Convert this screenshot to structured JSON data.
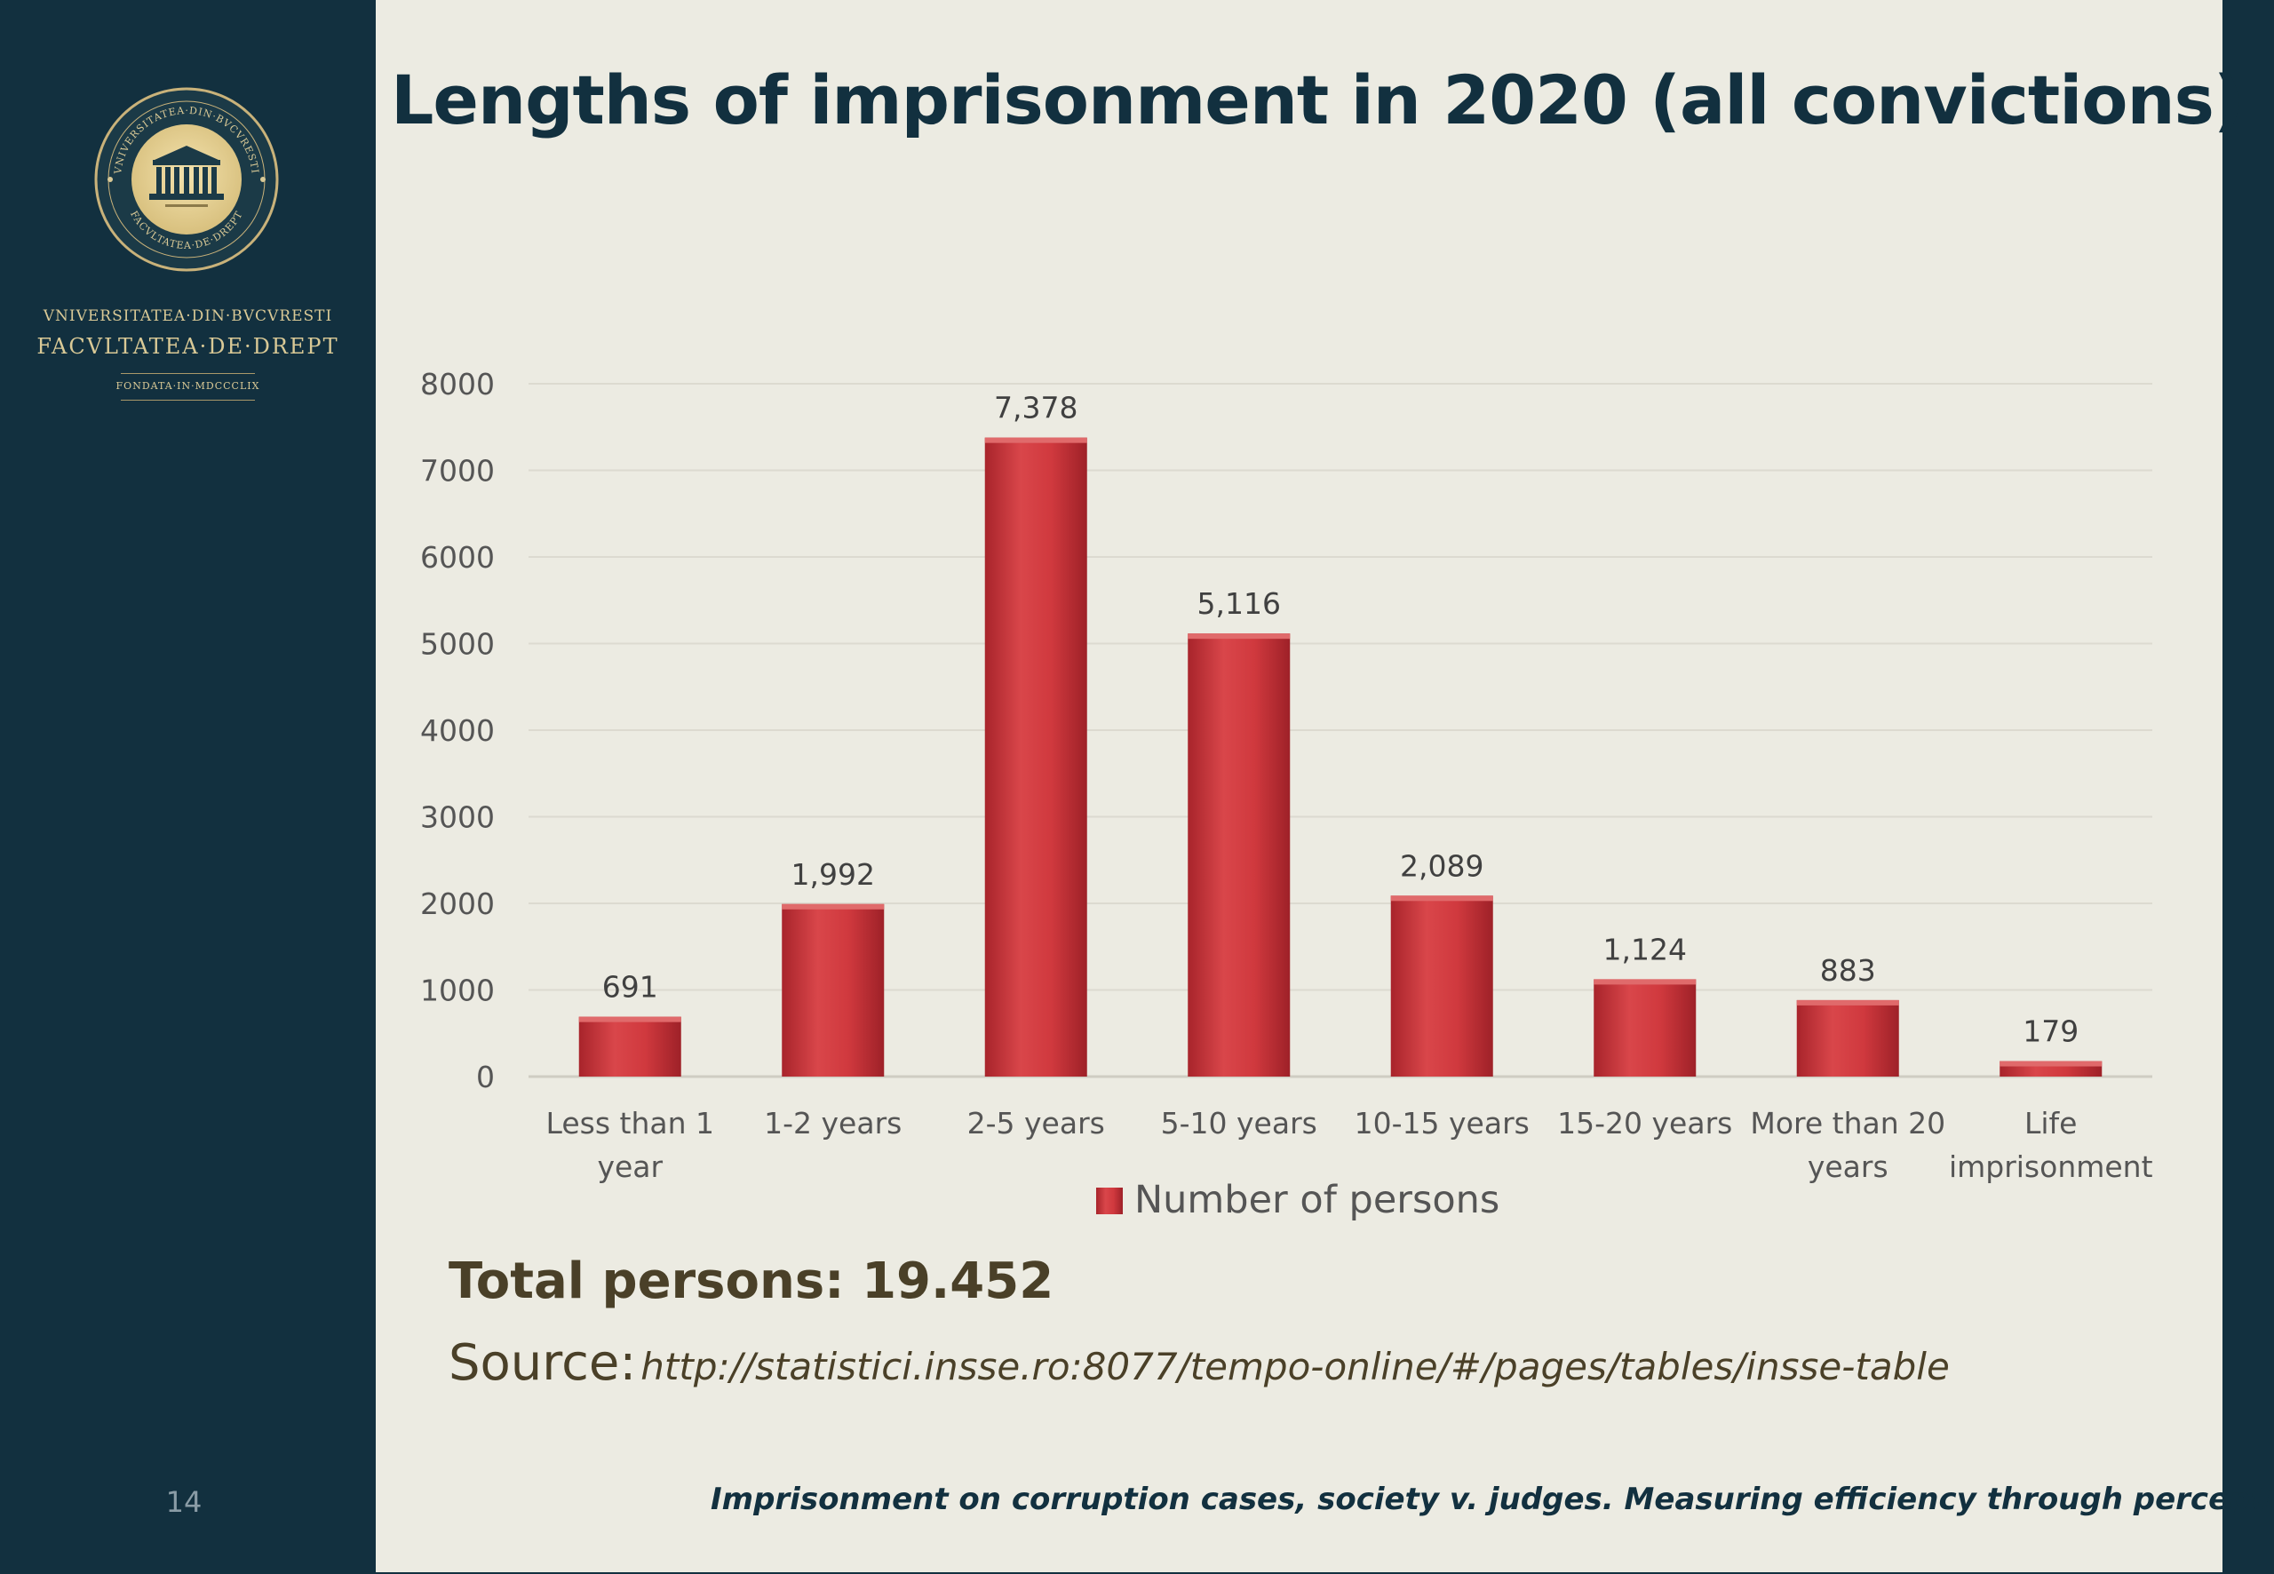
{
  "sidebar": {
    "university_line": "VNIVERSITATEA·DIN·BVCVRESTI",
    "faculty_line": "FACVLTATEA·DE·DREPT",
    "founded_line": "FONDATA·IN·MDCCCLIX",
    "seal_text_top": "VNIVERSITATEA·DIN·BVCVRESTI",
    "seal_text_bottom": "FACVLTATEA·DE·DREPT",
    "slide_number": "14"
  },
  "slide": {
    "title": "Lengths of imprisonment in 2020 (all convictions)",
    "total": "Total persons: 19.452",
    "source_label": "Source:",
    "source_url": "http://statistici.insse.ro:8077/tempo-online/#/pages/tables/insse-table",
    "footer_caption": "Imprisonment on corruption cases, society v. judges. Measuring efficiency through perception?"
  },
  "colors": {
    "sidebar": "#12303f",
    "background": "#ecebe2",
    "bar": "#c8383b",
    "text_dark": "#4a4028",
    "gold": "#d9c996"
  },
  "chart_data": {
    "type": "bar",
    "categories": [
      [
        "Less than 1",
        "year"
      ],
      [
        "1-2 years"
      ],
      [
        "2-5 years"
      ],
      [
        "5-10 years"
      ],
      [
        "10-15 years"
      ],
      [
        "15-20 years"
      ],
      [
        "More than 20",
        "years"
      ],
      [
        "Life",
        "imprisonment"
      ]
    ],
    "series": [
      {
        "name": "Number of persons",
        "values": [
          691,
          1992,
          7378,
          5116,
          2089,
          1124,
          883,
          179
        ],
        "labels": [
          "691",
          "1,992",
          "7,378",
          "5,116",
          "2,089",
          "1,124",
          "883",
          "179"
        ]
      }
    ],
    "ylim": [
      0,
      8000
    ],
    "yticks": [
      0,
      1000,
      2000,
      3000,
      4000,
      5000,
      6000,
      7000,
      8000
    ],
    "grid": true,
    "legend": "bottom"
  }
}
